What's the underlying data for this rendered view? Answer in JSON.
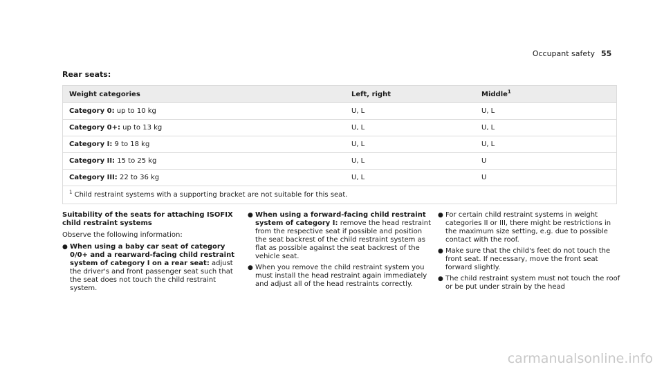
{
  "header": {
    "section_name": "Occupant safety",
    "page_number": "55"
  },
  "subheading": "Rear seats:",
  "table": {
    "columns": [
      "Weight categories",
      "Left, right",
      "Middle"
    ],
    "middle_sup": "1",
    "rows": [
      {
        "label": "Category 0:",
        "weight": " up to 10 kg",
        "left_right": "U, L",
        "middle": "U, L"
      },
      {
        "label": "Category 0+:",
        "weight": " up to 13 kg",
        "left_right": "U, L",
        "middle": "U, L"
      },
      {
        "label": "Category I:",
        "weight": " 9 to 18 kg",
        "left_right": "U, L",
        "middle": "U, L"
      },
      {
        "label": "Category II:",
        "weight": " 15 to 25 kg",
        "left_right": "U, L",
        "middle": "U"
      },
      {
        "label": "Category III:",
        "weight": " 22 to 36 kg",
        "left_right": "U, L",
        "middle": "U"
      }
    ],
    "footnote_sup": "1",
    "footnote": " Child restraint systems with a supporting bracket are not suitable for this seat."
  },
  "col1": {
    "heading": "Suitability of the seats for attaching ISOFIX child restraint systems",
    "intro": "Observe the following information:",
    "bullet1_bold": "When using a baby car seat of category 0/0+ and a rearward-facing child restraint system of category I on a rear seat:",
    "bullet1_text": " adjust the driver's and front passenger seat such that the seat does not touch the child restraint system."
  },
  "col2": {
    "bullet1_bold": "When using a forward-facing child restraint system of category I:",
    "bullet1_text": " remove the head restraint from the respective seat if possible and position the seat backrest of the child restraint system as flat as possible against the seat backrest of the vehicle seat.",
    "bullet2_text": "When you remove the child restraint system you must install the head restraint again immediately and adjust all of the head restraints correctly."
  },
  "col3": {
    "bullet1_text": "For certain child restraint systems in weight categories II or III, there might be restrictions in the maximum size setting, e.g. due to possible contact with the roof.",
    "bullet2_text": "Make sure that the child's feet do not touch the front seat. If necessary, move the front seat forward slightly.",
    "bullet3_text": "The child restraint system must not touch the roof or be put under strain by the head"
  },
  "bullet_glyph": "●",
  "watermark": "carmanualsonline.info"
}
